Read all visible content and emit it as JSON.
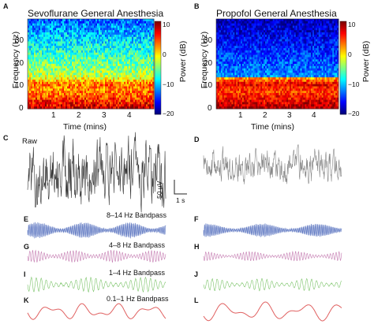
{
  "panels": {
    "A": {
      "letter": "A",
      "title": "Sevoflurane General Anesthesia"
    },
    "B": {
      "letter": "B",
      "title": "Propofol General Anesthesia"
    },
    "C": {
      "letter": "C"
    },
    "D": {
      "letter": "D"
    },
    "E": {
      "letter": "E"
    },
    "F": {
      "letter": "F"
    },
    "G": {
      "letter": "G"
    },
    "H": {
      "letter": "H"
    },
    "I": {
      "letter": "I"
    },
    "J": {
      "letter": "J"
    },
    "K": {
      "letter": "K"
    },
    "L": {
      "letter": "L"
    }
  },
  "spectrogram": {
    "ylabel": "Frequency (Hz)",
    "xlabel": "Time (mins)",
    "yticks": [
      "0",
      "10",
      "20",
      "30"
    ],
    "xticks": [
      "1",
      "2",
      "3",
      "4"
    ],
    "colorbar_label": "Power (dB)",
    "colorbar_ticks": [
      "10",
      "0",
      "−10",
      "−20"
    ]
  },
  "traces": {
    "raw_label": "Raw",
    "scale_voltage": "50 µV",
    "scale_time": "1 s",
    "bands": [
      {
        "label": "8–14 Hz Bandpass",
        "color": "#5a74c0"
      },
      {
        "label": "4–8 Hz Bandpass",
        "color": "#c47ab0"
      },
      {
        "label": "1–4 Hz Bandpass",
        "color": "#7cc46a"
      },
      {
        "label": "0.1–1 Hz Bandpass",
        "color": "#e06060"
      }
    ]
  },
  "chart_data": [
    {
      "type": "heatmap",
      "title": "Sevoflurane General Anesthesia",
      "xlabel": "Time (mins)",
      "ylabel": "Frequency (Hz)",
      "xlim": [
        0,
        5
      ],
      "ylim": [
        0,
        40
      ],
      "zlabel": "Power (dB)",
      "zlim": [
        -20,
        10
      ],
      "colormap": "jet",
      "description_values": {
        "high_power_band_hz": [
          0,
          14
        ],
        "alpha_peak_hz": 11
      }
    },
    {
      "type": "heatmap",
      "title": "Propofol General Anesthesia",
      "xlabel": "Time (mins)",
      "ylabel": "Frequency (Hz)",
      "xlim": [
        0,
        5
      ],
      "ylim": [
        0,
        40
      ],
      "zlabel": "Power (dB)",
      "zlim": [
        -20,
        10
      ],
      "colormap": "jet",
      "description_values": {
        "high_power_band_hz": [
          0,
          14
        ],
        "alpha_peak_hz": 11
      }
    }
  ]
}
